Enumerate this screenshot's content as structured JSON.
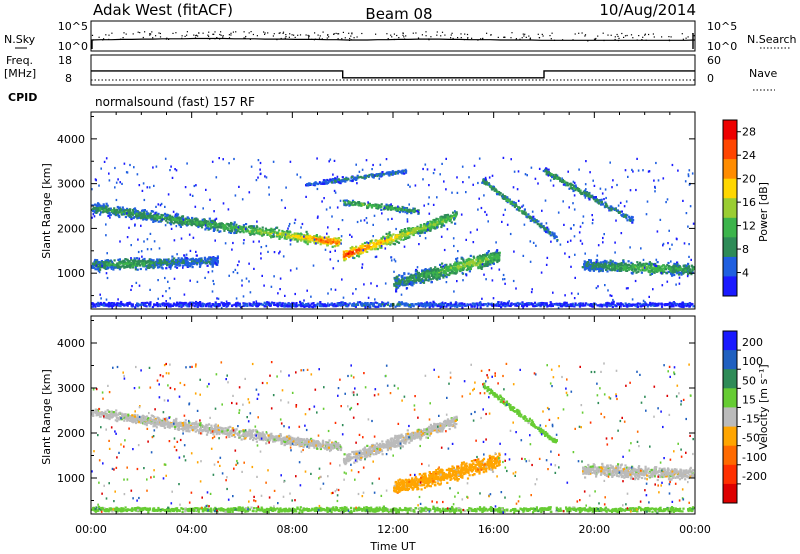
{
  "header": {
    "station": "Adak West (fitACF)",
    "beam": "Beam 08",
    "date": "10/Aug/2014"
  },
  "panels": {
    "noise": {
      "left_label": "N.Sky",
      "right_label": "N.Search",
      "tick_top": "10^5",
      "tick_bottom": "10^0",
      "sky_series": [
        30,
        31,
        31,
        32,
        32,
        33,
        33,
        34,
        34,
        34,
        35,
        35,
        35,
        35,
        34,
        34,
        34,
        33,
        33,
        33,
        32,
        32,
        32,
        31,
        31,
        30,
        30,
        30,
        31,
        31,
        32,
        32,
        33,
        33,
        33,
        32,
        32,
        31,
        31,
        31,
        30,
        30,
        30,
        30,
        29,
        29,
        29,
        29,
        29,
        29,
        29,
        29,
        29,
        29,
        29,
        29,
        29,
        29,
        29,
        30
      ]
    },
    "frequency": {
      "left_label": "Freq.",
      "unit_label": "[MHz]",
      "right_label": "Nave",
      "left_ticks": [
        "18",
        "8"
      ],
      "right_ticks": [
        "60",
        "0"
      ],
      "segments": [
        {
          "start_ut": 0,
          "end_ut": 10,
          "value_mhz": 12.7
        },
        {
          "start_ut": 10,
          "end_ut": 18,
          "value_mhz": 10.4
        },
        {
          "start_ut": 18,
          "end_ut": 24,
          "value_mhz": 12.7
        }
      ],
      "nave_level": 10
    },
    "cpid": {
      "label": "CPID",
      "text": "normalsound (fast) 157 RF"
    }
  },
  "chart_data": [
    {
      "type": "heatmap",
      "ylabel": "Slant Range [km]",
      "xlabel": "Time UT",
      "x_ticks": [
        "00:00",
        "04:00",
        "08:00",
        "12:00",
        "16:00",
        "20:00",
        "00:00"
      ],
      "y_ticks": [
        "1000",
        "2000",
        "3000",
        "4000"
      ],
      "xlim_hours": [
        0,
        24
      ],
      "ylim_km": [
        200,
        4600
      ],
      "colorbar": {
        "label": "Power [dB]",
        "ticks": [
          "4",
          "8",
          "12",
          "16",
          "20",
          "24",
          "28"
        ],
        "range": [
          0,
          30
        ],
        "colors": [
          "#1a1aff",
          "#1f5fe0",
          "#2e8b57",
          "#3cb44b",
          "#9acd32",
          "#ffd700",
          "#ff8c00",
          "#ff4500",
          "#ee0000"
        ]
      },
      "features": [
        {
          "start_ut": 0.0,
          "end_ut": 9.9,
          "range_start_km": 2480,
          "range_end_km": 1700,
          "thickness_km": 260,
          "peak_db": 26,
          "peak_at_ut": 9.5
        },
        {
          "start_ut": 10.0,
          "end_ut": 14.5,
          "range_start_km": 1420,
          "range_end_km": 2300,
          "thickness_km": 300,
          "peak_db": 28,
          "peak_at_ut": 10.2
        },
        {
          "start_ut": 10.0,
          "end_ut": 13.0,
          "range_start_km": 2600,
          "range_end_km": 2400,
          "thickness_km": 150,
          "peak_db": 14,
          "peak_at_ut": 11.0
        },
        {
          "start_ut": 0.0,
          "end_ut": 5.0,
          "range_start_km": 1200,
          "range_end_km": 1300,
          "thickness_km": 280,
          "peak_db": 12,
          "peak_at_ut": 1.5
        },
        {
          "start_ut": 12.0,
          "end_ut": 16.2,
          "range_start_km": 800,
          "range_end_km": 1400,
          "thickness_km": 380,
          "peak_db": 16,
          "peak_at_ut": 15.0
        },
        {
          "start_ut": 8.5,
          "end_ut": 12.5,
          "range_start_km": 3000,
          "range_end_km": 3300,
          "thickness_km": 120,
          "peak_db": 9,
          "peak_at_ut": 11.0
        },
        {
          "start_ut": 15.5,
          "end_ut": 18.5,
          "range_start_km": 3100,
          "range_end_km": 1800,
          "thickness_km": 150,
          "peak_db": 12,
          "peak_at_ut": 16.5
        },
        {
          "start_ut": 18.0,
          "end_ut": 21.5,
          "range_start_km": 3300,
          "range_end_km": 2200,
          "thickness_km": 150,
          "peak_db": 12,
          "peak_at_ut": 19.0
        },
        {
          "start_ut": 19.5,
          "end_ut": 24.0,
          "range_start_km": 1200,
          "range_end_km": 1100,
          "thickness_km": 300,
          "peak_db": 14,
          "peak_at_ut": 22.0
        },
        {
          "start_ut": 0.0,
          "end_ut": 24.0,
          "range_start_km": 320,
          "range_end_km": 320,
          "thickness_km": 120,
          "peak_db": 8,
          "peak_at_ut": 12.0
        }
      ]
    },
    {
      "type": "heatmap",
      "ylabel": "Slant Range [km]",
      "xlabel": "Time UT",
      "x_ticks": [
        "00:00",
        "04:00",
        "08:00",
        "12:00",
        "16:00",
        "20:00",
        "00:00"
      ],
      "y_ticks": [
        "1000",
        "2000",
        "3000",
        "4000"
      ],
      "xlim_hours": [
        0,
        24
      ],
      "ylim_km": [
        200,
        4600
      ],
      "colorbar": {
        "label": "Velocity [m s⁻¹]",
        "ticks": [
          "200",
          "100",
          "50",
          "15",
          "-15",
          "-50",
          "-100",
          "-200"
        ],
        "colors": [
          "#1a1aff",
          "#2060c0",
          "#2e8b57",
          "#66cc33",
          "#bbbbbb",
          "#ffa500",
          "#ff6a00",
          "#ff3000",
          "#dd0000"
        ]
      },
      "features": [
        {
          "start_ut": 0.0,
          "end_ut": 9.9,
          "range_start_km": 2480,
          "range_end_km": 1700,
          "thickness_km": 260,
          "velocity": "-15 to 15"
        },
        {
          "start_ut": 10.0,
          "end_ut": 14.5,
          "range_start_km": 1420,
          "range_end_km": 2300,
          "thickness_km": 300,
          "velocity": "-15 to 15"
        },
        {
          "start_ut": 12.0,
          "end_ut": 16.2,
          "range_start_km": 800,
          "range_end_km": 1400,
          "thickness_km": 380,
          "velocity": "-15 to -50"
        },
        {
          "start_ut": 15.5,
          "end_ut": 18.5,
          "range_start_km": 3100,
          "range_end_km": 1800,
          "thickness_km": 150,
          "velocity": "15 to 50"
        },
        {
          "start_ut": 19.5,
          "end_ut": 24.0,
          "range_start_km": 1200,
          "range_end_km": 1100,
          "thickness_km": 300,
          "velocity": "-15 to 15"
        },
        {
          "start_ut": 0.0,
          "end_ut": 24.0,
          "range_start_km": 320,
          "range_end_km": 320,
          "thickness_km": 120,
          "velocity": "15 to 50"
        }
      ]
    }
  ]
}
